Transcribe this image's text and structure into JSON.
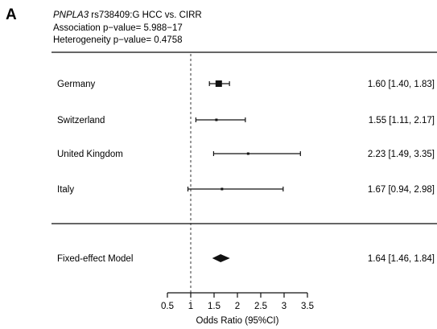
{
  "panel_letter": "A",
  "header": {
    "gene": "PNPLA3",
    "title_rest": " rs738409:G HCC vs. CIRR",
    "association": "Association p−value= 5.988−17",
    "heterogeneity": "Heterogeneity p−value= 0.4758"
  },
  "chart_data": {
    "type": "forest",
    "xlabel": "Odds Ratio (95%CI)",
    "xlim": [
      0.5,
      3.5
    ],
    "xticks": [
      0.5,
      1,
      1.5,
      2,
      2.5,
      3,
      3.5
    ],
    "xtick_labels": [
      "0.5",
      "1",
      "1.5",
      "2",
      "2.5",
      "3",
      "3.5"
    ],
    "reference_line": 1,
    "studies": [
      {
        "label": "Germany",
        "or": 1.6,
        "lower": 1.4,
        "upper": 1.83,
        "ci_text": "1.60 [1.40, 1.83]",
        "weight": "large"
      },
      {
        "label": "Switzerland",
        "or": 1.55,
        "lower": 1.11,
        "upper": 2.17,
        "ci_text": "1.55 [1.11, 2.17]",
        "weight": "small"
      },
      {
        "label": "United Kingdom",
        "or": 2.23,
        "lower": 1.49,
        "upper": 3.35,
        "ci_text": "2.23 [1.49, 3.35]",
        "weight": "small"
      },
      {
        "label": "Italy",
        "or": 1.67,
        "lower": 0.94,
        "upper": 2.98,
        "ci_text": "1.67 [0.94, 2.98]",
        "weight": "small"
      }
    ],
    "summary": {
      "label": "Fixed-effect Model",
      "or": 1.64,
      "lower": 1.46,
      "upper": 1.84,
      "ci_text": "1.64 [1.46, 1.84]"
    }
  }
}
